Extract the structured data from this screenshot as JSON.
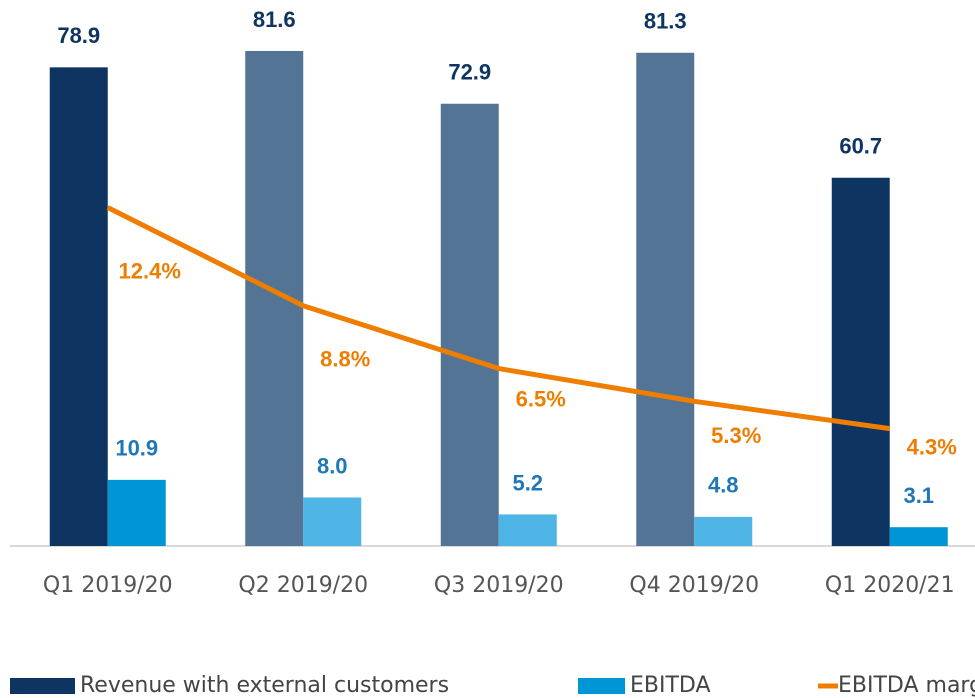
{
  "chart_data": {
    "type": "bar",
    "categories": [
      "Q1 2019/20",
      "Q2 2019/20",
      "Q3 2019/20",
      "Q4 2019/20",
      "Q1 2020/21"
    ],
    "series": [
      {
        "name": "Revenue with external customers",
        "color": "#0e3562",
        "colors": [
          "#0e3562",
          "#537494",
          "#537494",
          "#537494",
          "#0e3562"
        ],
        "values": [
          78.9,
          81.6,
          72.9,
          81.3,
          60.7
        ]
      },
      {
        "name": "EBITDA",
        "color": "#0096d6",
        "colors": [
          "#0096d6",
          "#4fb4e6",
          "#4fb4e6",
          "#4fb4e6",
          "#0096d6"
        ],
        "values": [
          10.9,
          8.0,
          5.2,
          4.8,
          3.1
        ],
        "value_labels": [
          "10.9",
          "8.0",
          "5.2",
          "4.8",
          "3.1"
        ]
      },
      {
        "name": "EBITDA margin",
        "type": "line",
        "axis": "y2",
        "color": "#ef7d00",
        "values": [
          12.4,
          8.8,
          6.5,
          5.3,
          4.3
        ],
        "value_labels": [
          "12.4%",
          "8.8%",
          "6.5%",
          "5.3%",
          "4.3%"
        ]
      }
    ],
    "ylim": [
      0,
      90
    ],
    "y2lim": [
      0,
      20
    ]
  }
}
